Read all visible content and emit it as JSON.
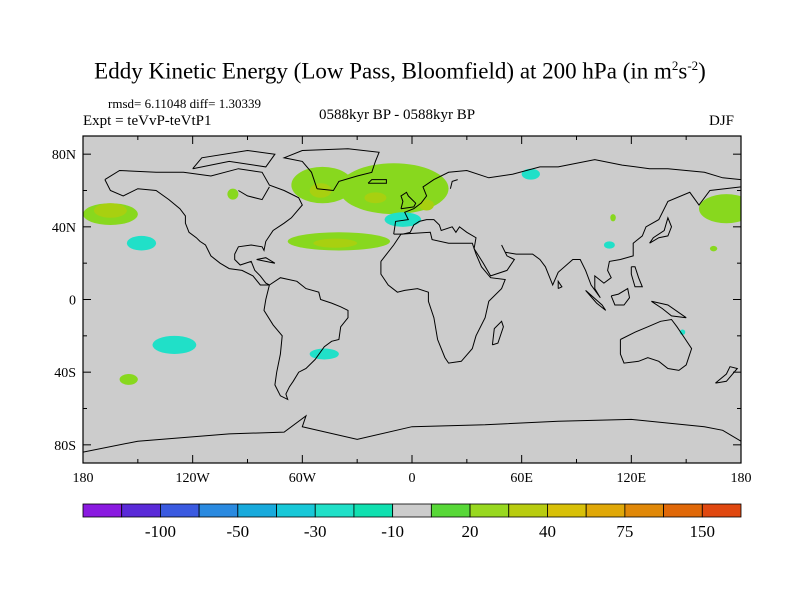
{
  "title": {
    "main": "Eddy Kinetic Energy (Low Pass, Bloomfield) at 200 hPa (in m",
    "sup1": "2",
    "mid": "s",
    "sup2": "-2",
    "end": ")"
  },
  "stats": "rmsd= 6.11048 diff= 1.30339",
  "experiment": "Expt = teVvP-teVtP1",
  "period": "0588kyr BP - 0588kyr BP",
  "season": "DJF",
  "map": {
    "ocean_land_color": "#cccccc",
    "coastline_color": "#000000",
    "lat_ticks": [
      {
        "value": 80,
        "label": "80N"
      },
      {
        "value": 40,
        "label": "40N"
      },
      {
        "value": 0,
        "label": "0"
      },
      {
        "value": -40,
        "label": "40S"
      },
      {
        "value": -80,
        "label": "80S"
      }
    ],
    "lon_ticks": [
      {
        "value": -180,
        "label": "180"
      },
      {
        "value": -120,
        "label": "120W"
      },
      {
        "value": -60,
        "label": "60W"
      },
      {
        "value": 0,
        "label": "0"
      },
      {
        "value": 60,
        "label": "60E"
      },
      {
        "value": 120,
        "label": "120E"
      },
      {
        "value": 180,
        "label": "180"
      }
    ],
    "anomalies": [
      {
        "lon": -165,
        "lat": 47,
        "rlon": 15,
        "rlat": 6,
        "color": "#88d81e"
      },
      {
        "lon": -165,
        "lat": 49,
        "rlon": 9,
        "rlat": 4,
        "color": "#a8d010"
      },
      {
        "lon": -148,
        "lat": 31,
        "rlon": 8,
        "rlat": 4,
        "color": "#20e0c8"
      },
      {
        "lon": -98,
        "lat": 58,
        "rlon": 3,
        "rlat": 3,
        "color": "#88d81e"
      },
      {
        "lon": -49,
        "lat": 63,
        "rlon": 17,
        "rlat": 10,
        "color": "#88d81e"
      },
      {
        "lon": -10,
        "lat": 61,
        "rlon": 30,
        "rlat": 14,
        "color": "#88d81e"
      },
      {
        "lon": -50,
        "lat": 60,
        "rlon": 6,
        "rlat": 4,
        "color": "#a8d010"
      },
      {
        "lon": -20,
        "lat": 56,
        "rlon": 6,
        "rlat": 3,
        "color": "#a8d010"
      },
      {
        "lon": 8,
        "lat": 52,
        "rlon": 4,
        "rlat": 3,
        "color": "#a8d010"
      },
      {
        "lon": -5,
        "lat": 44,
        "rlon": 10,
        "rlat": 4,
        "color": "#20e0c8"
      },
      {
        "lon": -40,
        "lat": 32,
        "rlon": 28,
        "rlat": 5,
        "color": "#88d81e"
      },
      {
        "lon": -42,
        "lat": 31,
        "rlon": 12,
        "rlat": 2.5,
        "color": "#a8d010"
      },
      {
        "lon": 65,
        "lat": 69,
        "rlon": 5,
        "rlat": 3,
        "color": "#20e0c8"
      },
      {
        "lon": 108,
        "lat": 30,
        "rlon": 3,
        "rlat": 2,
        "color": "#20e0c8"
      },
      {
        "lon": 110,
        "lat": 45,
        "rlon": 1.5,
        "rlat": 2,
        "color": "#88d81e"
      },
      {
        "lon": 172,
        "lat": 50,
        "rlon": 15,
        "rlat": 8,
        "color": "#88d81e"
      },
      {
        "lon": 165,
        "lat": 28,
        "rlon": 2,
        "rlat": 1.5,
        "color": "#88d81e"
      },
      {
        "lon": -130,
        "lat": -25,
        "rlon": 12,
        "rlat": 5,
        "color": "#20e0c8"
      },
      {
        "lon": -48,
        "lat": -30,
        "rlon": 8,
        "rlat": 3,
        "color": "#20e0c8"
      },
      {
        "lon": -155,
        "lat": -44,
        "rlon": 5,
        "rlat": 3,
        "color": "#88d81e"
      },
      {
        "lon": 148,
        "lat": -18,
        "rlon": 1.5,
        "rlat": 1.5,
        "color": "#20e0c8"
      }
    ]
  },
  "colorbar": {
    "colors": [
      "#8a1ae0",
      "#5a2ad8",
      "#3a5ae0",
      "#2a8ae0",
      "#18aadc",
      "#18c8d8",
      "#20e0c8",
      "#10e0b0",
      "#cccccc",
      "#58d838",
      "#98d820",
      "#b8cc10",
      "#d8c008",
      "#e0a808",
      "#e08808",
      "#e06808",
      "#e04810"
    ],
    "labels": [
      "-100",
      "-50",
      "-30",
      "-10",
      "20",
      "40",
      "75",
      "150"
    ]
  }
}
